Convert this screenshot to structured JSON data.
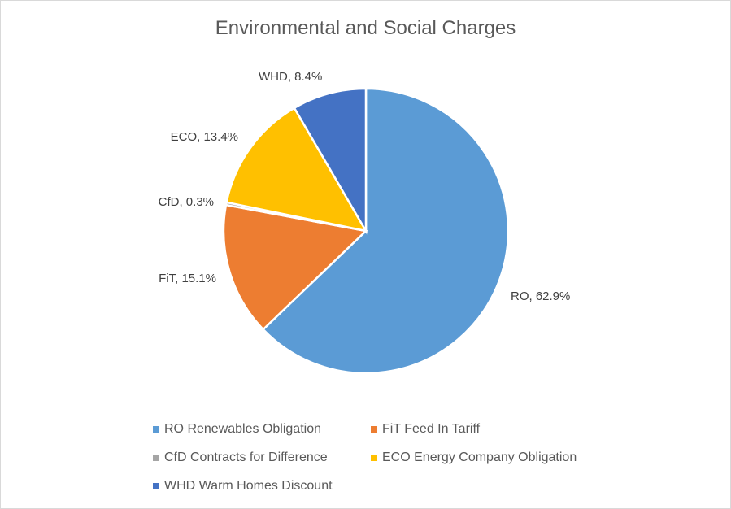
{
  "chart_data": {
    "type": "pie",
    "title": "Environmental and Social Charges",
    "start_angle_deg": 0,
    "direction": "clockwise",
    "slices": [
      {
        "key": "RO",
        "legend": "RO Renewables Obligation",
        "value": 62.9,
        "label": "RO, 62.9%",
        "color": "#5B9BD5"
      },
      {
        "key": "FiT",
        "legend": "FiT Feed In Tariff",
        "value": 15.1,
        "label": "FiT, 15.1%",
        "color": "#ED7D31"
      },
      {
        "key": "CfD",
        "legend": "CfD Contracts for Difference",
        "value": 0.3,
        "label": "CfD, 0.3%",
        "color": "#A5A5A5"
      },
      {
        "key": "ECO",
        "legend": "ECO Energy Company Obligation",
        "value": 13.4,
        "label": "ECO, 13.4%",
        "color": "#FFC000"
      },
      {
        "key": "WHD",
        "legend": "WHD Warm Homes Discount",
        "value": 8.4,
        "label": "WHD, 8.4%",
        "color": "#4472C4"
      }
    ],
    "legend_position": "bottom"
  }
}
